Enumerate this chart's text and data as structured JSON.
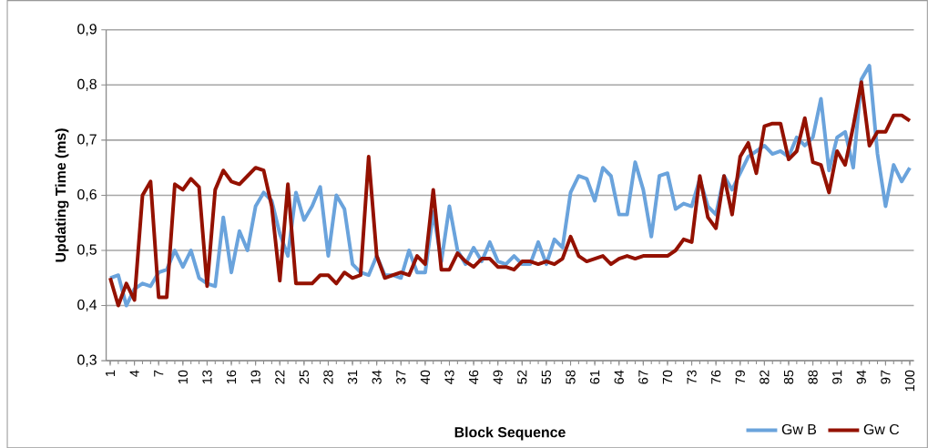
{
  "chart_data": {
    "type": "line",
    "xlabel": "Block Sequence",
    "ylabel": "Updating Time (ms)",
    "categories": [
      "1",
      null,
      null,
      "4",
      null,
      null,
      "7",
      null,
      null,
      "10",
      null,
      null,
      "13",
      null,
      null,
      "16",
      null,
      null,
      "19",
      null,
      null,
      "22",
      null,
      null,
      "25",
      null,
      null,
      "28",
      null,
      null,
      "31",
      null,
      null,
      "34",
      null,
      null,
      "37",
      null,
      null,
      "40",
      null,
      null,
      "43",
      null,
      null,
      "46",
      null,
      null,
      "49",
      null,
      null,
      "52",
      null,
      null,
      "55",
      null,
      null,
      "58",
      null,
      null,
      "61",
      null,
      null,
      "64",
      null,
      null,
      "67",
      null,
      null,
      "70",
      null,
      null,
      "73",
      null,
      null,
      "76",
      null,
      null,
      "79",
      null,
      null,
      "82",
      null,
      null,
      "85",
      null,
      null,
      "88",
      null,
      null,
      "91",
      null,
      null,
      "94",
      null,
      null,
      "97",
      null,
      null,
      "100"
    ],
    "series": [
      {
        "name": "Gw B",
        "color": "#6aa3dc",
        "values": [
          0.45,
          0.455,
          0.4,
          0.43,
          0.44,
          0.435,
          0.46,
          0.465,
          0.5,
          0.47,
          0.5,
          0.45,
          0.44,
          0.435,
          0.56,
          0.46,
          0.535,
          0.5,
          0.58,
          0.605,
          0.59,
          0.53,
          0.49,
          0.605,
          0.555,
          0.58,
          0.615,
          0.49,
          0.6,
          0.575,
          0.475,
          0.46,
          0.455,
          0.49,
          0.455,
          0.455,
          0.45,
          0.5,
          0.46,
          0.46,
          0.57,
          0.48,
          0.58,
          0.5,
          0.475,
          0.505,
          0.48,
          0.515,
          0.48,
          0.475,
          0.49,
          0.475,
          0.475,
          0.515,
          0.475,
          0.52,
          0.505,
          0.605,
          0.635,
          0.63,
          0.59,
          0.65,
          0.635,
          0.565,
          0.565,
          0.66,
          0.61,
          0.525,
          0.635,
          0.64,
          0.575,
          0.585,
          0.58,
          0.63,
          0.58,
          0.565,
          0.635,
          0.61,
          0.64,
          0.67,
          0.68,
          0.69,
          0.675,
          0.68,
          0.67,
          0.705,
          0.69,
          0.705,
          0.775,
          0.645,
          0.705,
          0.715,
          0.65,
          0.81,
          0.835,
          0.675,
          0.58,
          0.655,
          0.625,
          0.65
        ]
      },
      {
        "name": "Gw C",
        "color": "#941100",
        "values": [
          0.45,
          0.4,
          0.44,
          0.41,
          0.6,
          0.625,
          0.415,
          0.415,
          0.62,
          0.61,
          0.63,
          0.615,
          0.435,
          0.61,
          0.645,
          0.625,
          0.62,
          0.635,
          0.65,
          0.645,
          0.58,
          0.445,
          0.62,
          0.44,
          0.44,
          0.44,
          0.455,
          0.455,
          0.44,
          0.46,
          0.45,
          0.455,
          0.67,
          0.49,
          0.45,
          0.455,
          0.46,
          0.455,
          0.49,
          0.475,
          0.61,
          0.465,
          0.465,
          0.495,
          0.48,
          0.47,
          0.485,
          0.485,
          0.47,
          0.47,
          0.465,
          0.48,
          0.48,
          0.475,
          0.48,
          0.475,
          0.485,
          0.525,
          0.49,
          0.48,
          0.485,
          0.49,
          0.475,
          0.485,
          0.49,
          0.485,
          0.49,
          0.49,
          0.49,
          0.49,
          0.5,
          0.52,
          0.515,
          0.635,
          0.56,
          0.54,
          0.635,
          0.565,
          0.67,
          0.695,
          0.64,
          0.725,
          0.73,
          0.73,
          0.665,
          0.68,
          0.74,
          0.66,
          0.655,
          0.605,
          0.68,
          0.655,
          0.725,
          0.805,
          0.69,
          0.715,
          0.715,
          0.745,
          0.745,
          0.735
        ]
      }
    ],
    "ylim": [
      0.3,
      0.9
    ],
    "yticks": [
      {
        "value": 0.3,
        "label": "0,3"
      },
      {
        "value": 0.4,
        "label": "0,4"
      },
      {
        "value": 0.5,
        "label": "0,5"
      },
      {
        "value": 0.6,
        "label": "0,6"
      },
      {
        "value": 0.7,
        "label": "0,7"
      },
      {
        "value": 0.8,
        "label": "0,8"
      },
      {
        "value": 0.9,
        "label": "0,9"
      }
    ],
    "grid": "y",
    "legend": "bottom right",
    "marker": "none",
    "line_style": "solid"
  }
}
